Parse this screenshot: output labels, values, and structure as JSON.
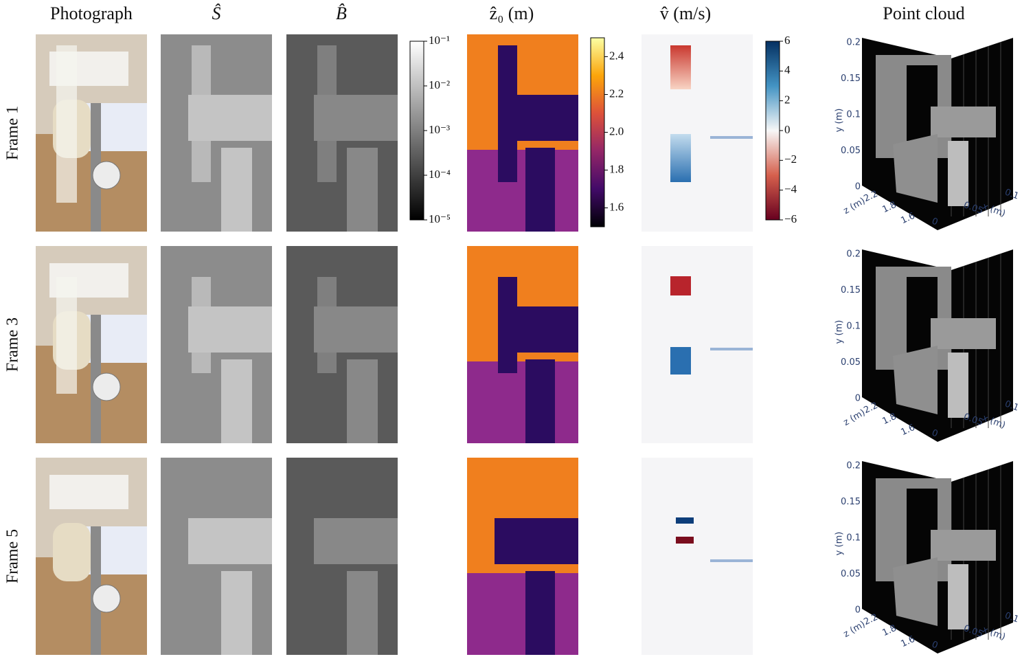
{
  "columns": [
    "Photograph",
    "Ŝ",
    "B̂",
    "ẑ₀ (m)",
    "v̂ (m/s)",
    "Point cloud"
  ],
  "rows": [
    "Frame 1",
    "Frame 3",
    "Frame 5"
  ],
  "colorbars": [
    {
      "scale": "log",
      "lim": [
        1e-05,
        0.1
      ],
      "colors": [
        "#000000",
        "#ffffff"
      ],
      "ticks": [
        {
          "value": 0.1,
          "label": "10⁻¹"
        },
        {
          "value": 0.01,
          "label": "10⁻²"
        },
        {
          "value": 0.001,
          "label": "10⁻³"
        },
        {
          "value": 0.0001,
          "label": "10⁻⁴"
        },
        {
          "value": 1e-05,
          "label": "10⁻⁵"
        }
      ]
    },
    {
      "scale": "linear",
      "lim": [
        1.5,
        2.5
      ],
      "colors": [
        "#000004",
        "#420a68",
        "#932667",
        "#dd513a",
        "#fca50a",
        "#fcffa4"
      ],
      "ticks": [
        2.4,
        2.2,
        {
          "value": 2,
          "label": "2.0"
        },
        1.8,
        1.6
      ]
    },
    {
      "scale": "linear",
      "lim": [
        -6,
        6
      ],
      "colors": [
        "#67001f",
        "#d6604d",
        "#f7f7f7",
        "#4393c3",
        "#053061"
      ],
      "ticks": [
        6,
        4,
        2,
        0,
        {
          "value": -2,
          "label": "−2"
        },
        {
          "value": -4,
          "label": "−4"
        },
        {
          "value": -6,
          "label": "−6"
        }
      ]
    }
  ],
  "point_cloud": {
    "y_label": "y (m)",
    "z_label": "z (m)",
    "x_label": "x (m)",
    "yticks": [
      0.2,
      0.15,
      0.1,
      0.05,
      0
    ],
    "zticks": [
      2.2,
      1.8,
      1.6
    ],
    "xticks": [
      0.1,
      0.05,
      0
    ]
  }
}
